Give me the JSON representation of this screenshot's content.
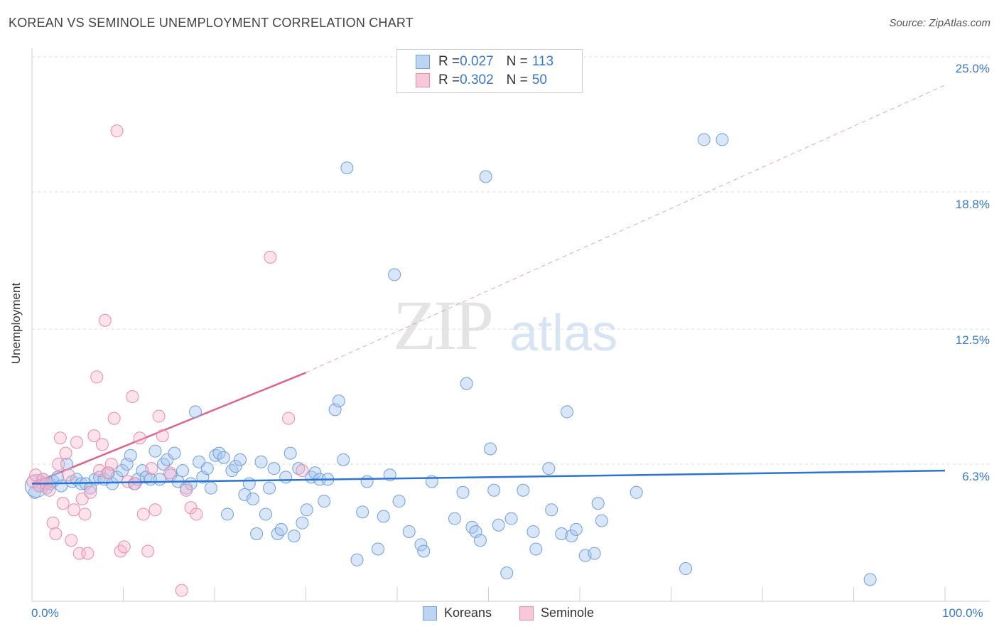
{
  "title": "KOREAN VS SEMINOLE UNEMPLOYMENT CORRELATION CHART",
  "source": "Source: ZipAtlas.com",
  "watermark": {
    "zip": "ZIP",
    "atlas": "atlas"
  },
  "colors": {
    "blue": "#3a78c9",
    "blue_fill": "#a9c8ef",
    "pink": "#e0608f",
    "pink_fill": "#f7b6cb"
  },
  "legend": [
    {
      "r_label": "R = ",
      "r": "0.027",
      "n_label": "N = ",
      "n": "113"
    },
    {
      "r_label": "R = ",
      "r": "0.302",
      "n_label": "N = ",
      "n": "50"
    }
  ],
  "bottom_legend": {
    "koreans": "Koreans",
    "seminole": "Seminole"
  },
  "chart_data": {
    "type": "scatter",
    "title": "KOREAN VS SEMINOLE UNEMPLOYMENT CORRELATION CHART",
    "xlabel": "",
    "ylabel": "Unemployment",
    "xlim": [
      0,
      100
    ],
    "ylim": [
      0,
      26
    ],
    "x_tick_labels": {
      "min": "0.0%",
      "max": "100.0%"
    },
    "y_ticks": [
      6.3,
      12.5,
      18.8,
      25.0
    ],
    "y_tick_labels": [
      "6.3%",
      "12.5%",
      "18.8%",
      "25.0%"
    ],
    "grid": true,
    "legend_position": "top-center",
    "series": [
      {
        "name": "Koreans",
        "R": 0.027,
        "N": 113,
        "trend": {
          "x0": 0,
          "y0": 5.4,
          "x1": 100,
          "y1": 6.0,
          "style": "solid"
        },
        "points": [
          [
            0.3,
            5.0
          ],
          [
            0.8,
            5.3
          ],
          [
            1.2,
            5.6
          ],
          [
            1.6,
            5.2
          ],
          [
            2.0,
            5.4
          ],
          [
            2.3,
            5.5
          ],
          [
            2.8,
            5.7
          ],
          [
            3.2,
            5.3
          ],
          [
            3.8,
            6.3
          ],
          [
            4.4,
            5.5
          ],
          [
            4.9,
            5.6
          ],
          [
            5.4,
            5.4
          ],
          [
            5.9,
            5.4
          ],
          [
            6.4,
            5.2
          ],
          [
            6.9,
            5.6
          ],
          [
            7.4,
            5.7
          ],
          [
            7.9,
            5.6
          ],
          [
            8.4,
            5.9
          ],
          [
            8.8,
            5.4
          ],
          [
            9.3,
            5.7
          ],
          [
            9.9,
            6.0
          ],
          [
            10.4,
            6.3
          ],
          [
            10.8,
            6.7
          ],
          [
            11.2,
            5.4
          ],
          [
            11.6,
            5.6
          ],
          [
            12.1,
            6.0
          ],
          [
            12.5,
            5.7
          ],
          [
            13.0,
            5.6
          ],
          [
            13.5,
            6.9
          ],
          [
            14.0,
            5.6
          ],
          [
            14.4,
            6.3
          ],
          [
            14.8,
            6.5
          ],
          [
            15.2,
            5.8
          ],
          [
            15.6,
            6.8
          ],
          [
            16.0,
            5.5
          ],
          [
            16.5,
            6.0
          ],
          [
            16.9,
            5.2
          ],
          [
            17.4,
            5.4
          ],
          [
            17.9,
            8.7
          ],
          [
            18.3,
            6.4
          ],
          [
            18.7,
            5.7
          ],
          [
            19.2,
            6.1
          ],
          [
            19.6,
            5.2
          ],
          [
            20.1,
            6.7
          ],
          [
            20.5,
            6.8
          ],
          [
            21.0,
            6.6
          ],
          [
            21.4,
            4.0
          ],
          [
            21.9,
            6.0
          ],
          [
            22.3,
            6.2
          ],
          [
            22.8,
            6.5
          ],
          [
            23.3,
            4.9
          ],
          [
            23.8,
            5.4
          ],
          [
            24.2,
            4.7
          ],
          [
            24.6,
            3.1
          ],
          [
            25.1,
            6.4
          ],
          [
            25.6,
            4.0
          ],
          [
            26.0,
            5.2
          ],
          [
            26.5,
            6.1
          ],
          [
            26.9,
            3.1
          ],
          [
            27.3,
            3.3
          ],
          [
            27.8,
            5.7
          ],
          [
            28.3,
            6.8
          ],
          [
            28.7,
            3.0
          ],
          [
            29.2,
            6.1
          ],
          [
            29.6,
            3.6
          ],
          [
            30.1,
            4.2
          ],
          [
            30.6,
            5.7
          ],
          [
            31.0,
            5.9
          ],
          [
            31.5,
            5.6
          ],
          [
            32.0,
            4.6
          ],
          [
            32.4,
            5.6
          ],
          [
            33.2,
            8.8
          ],
          [
            33.6,
            9.2
          ],
          [
            34.1,
            6.5
          ],
          [
            34.5,
            19.9
          ],
          [
            35.6,
            1.9
          ],
          [
            36.2,
            4.1
          ],
          [
            36.7,
            5.5
          ],
          [
            37.9,
            2.4
          ],
          [
            38.5,
            3.9
          ],
          [
            39.2,
            5.8
          ],
          [
            39.7,
            15.0
          ],
          [
            40.2,
            4.6
          ],
          [
            41.3,
            3.2
          ],
          [
            42.6,
            2.6
          ],
          [
            42.9,
            2.3
          ],
          [
            43.8,
            5.5
          ],
          [
            46.3,
            3.8
          ],
          [
            47.2,
            5.0
          ],
          [
            47.6,
            10.0
          ],
          [
            48.2,
            3.4
          ],
          [
            48.6,
            3.2
          ],
          [
            49.1,
            2.8
          ],
          [
            49.7,
            19.5
          ],
          [
            50.2,
            7.0
          ],
          [
            50.6,
            5.1
          ],
          [
            51.1,
            3.5
          ],
          [
            52.0,
            1.3
          ],
          [
            52.5,
            3.8
          ],
          [
            53.8,
            5.1
          ],
          [
            54.9,
            3.2
          ],
          [
            55.2,
            2.4
          ],
          [
            56.6,
            6.1
          ],
          [
            56.9,
            4.2
          ],
          [
            58.0,
            3.1
          ],
          [
            58.6,
            8.7
          ],
          [
            59.1,
            3.0
          ],
          [
            59.6,
            3.3
          ],
          [
            60.6,
            2.1
          ],
          [
            61.6,
            2.2
          ],
          [
            62.0,
            4.5
          ],
          [
            62.4,
            3.7
          ],
          [
            66.2,
            5.0
          ],
          [
            71.6,
            1.5
          ],
          [
            73.6,
            21.2
          ],
          [
            75.6,
            21.2
          ],
          [
            91.8,
            1.0
          ]
        ]
      },
      {
        "name": "Seminole",
        "R": 0.302,
        "N": 50,
        "trend": {
          "x0": 0,
          "y0": 5.4,
          "x1": 30,
          "y1": 10.5,
          "dash_to_x": 100,
          "dash_to_y": 23.7,
          "style": "solid-then-dashed"
        },
        "points": [
          [
            0.1,
            5.5
          ],
          [
            0.4,
            5.8
          ],
          [
            0.8,
            5.3
          ],
          [
            1.2,
            5.6
          ],
          [
            1.5,
            5.4
          ],
          [
            1.9,
            5.1
          ],
          [
            2.3,
            3.6
          ],
          [
            2.6,
            3.1
          ],
          [
            2.9,
            6.3
          ],
          [
            3.1,
            7.5
          ],
          [
            3.4,
            4.5
          ],
          [
            3.7,
            6.8
          ],
          [
            4.0,
            5.8
          ],
          [
            4.3,
            2.8
          ],
          [
            4.6,
            4.2
          ],
          [
            4.9,
            7.3
          ],
          [
            5.2,
            2.2
          ],
          [
            5.5,
            4.7
          ],
          [
            5.8,
            4.0
          ],
          [
            6.1,
            2.2
          ],
          [
            6.4,
            5.0
          ],
          [
            6.8,
            7.6
          ],
          [
            7.1,
            10.3
          ],
          [
            7.4,
            6.0
          ],
          [
            7.7,
            7.2
          ],
          [
            8.0,
            12.9
          ],
          [
            8.3,
            5.9
          ],
          [
            8.7,
            6.3
          ],
          [
            9.0,
            8.4
          ],
          [
            9.3,
            21.6
          ],
          [
            9.7,
            2.3
          ],
          [
            10.1,
            2.5
          ],
          [
            10.5,
            5.5
          ],
          [
            11.0,
            9.4
          ],
          [
            11.3,
            5.4
          ],
          [
            11.8,
            7.5
          ],
          [
            12.2,
            4.0
          ],
          [
            12.7,
            2.3
          ],
          [
            13.1,
            6.1
          ],
          [
            13.5,
            4.2
          ],
          [
            13.9,
            8.5
          ],
          [
            14.3,
            7.6
          ],
          [
            15.1,
            5.9
          ],
          [
            16.4,
            0.5
          ],
          [
            16.9,
            5.1
          ],
          [
            17.4,
            4.3
          ],
          [
            18.0,
            4.0
          ],
          [
            26.1,
            15.8
          ],
          [
            28.1,
            8.4
          ],
          [
            29.6,
            6.0
          ]
        ]
      }
    ]
  }
}
